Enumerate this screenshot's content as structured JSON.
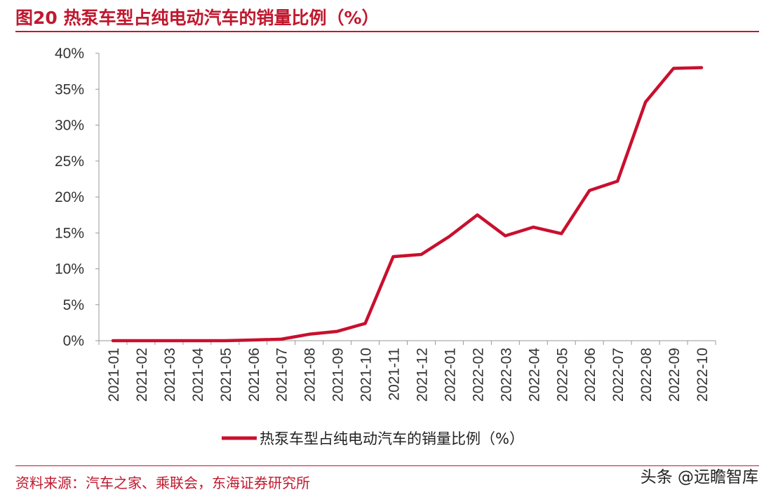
{
  "title": "图20  热泵车型占纯电动汽车的销量比例（%）",
  "source": "资料来源：汽车之家、乘联会，东海证券研究所",
  "watermark": "头条 @远瞻智库",
  "colors": {
    "accent": "#c0182e",
    "series": "#c8102e"
  },
  "chart_data": {
    "type": "line",
    "title": "热泵车型占纯电动汽车的销量比例（%）",
    "x": [
      "2021-01",
      "2021-02",
      "2021-03",
      "2021-04",
      "2021-05",
      "2021-06",
      "2021-07",
      "2021-08",
      "2021-09",
      "2021-10",
      "2021-11",
      "2021-12",
      "2022-01",
      "2022-02",
      "2022-03",
      "2022-04",
      "2022-05",
      "2022-06",
      "2022-07",
      "2022-08",
      "2022-09",
      "2022-10"
    ],
    "series": [
      {
        "name": "热泵车型占纯电动汽车的销量比例（%）",
        "values": [
          0.0,
          0.0,
          0.0,
          0.0,
          0.0,
          0.1,
          0.2,
          0.9,
          1.3,
          2.4,
          11.7,
          12.0,
          14.5,
          17.5,
          14.6,
          15.8,
          14.9,
          20.9,
          22.2,
          33.2,
          37.9,
          38.0
        ]
      }
    ],
    "yticks": [
      "0%",
      "5%",
      "10%",
      "15%",
      "20%",
      "25%",
      "30%",
      "35%",
      "40%"
    ],
    "ylim": [
      0,
      40
    ],
    "legend": "bottom-center",
    "grid": false
  }
}
